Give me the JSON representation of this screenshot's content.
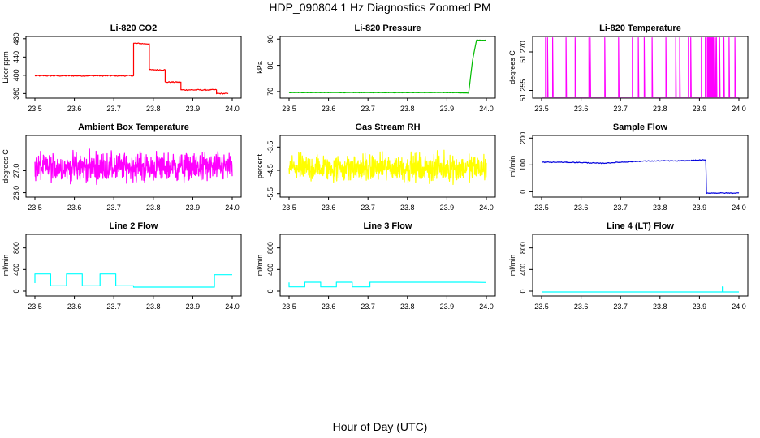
{
  "page": {
    "title": "HDP_090804  1 Hz Diagnostics Zoomed PM",
    "footer": "Hour of Day (UTC)"
  },
  "chart_data": [
    {
      "type": "line",
      "title": "Li-820 CO2",
      "ylabel": "Licor ppm",
      "color": "#ff0000",
      "xlim": [
        23.5,
        24.0
      ],
      "ylim": [
        350,
        485
      ],
      "xticks": [
        "23.5",
        "23.6",
        "23.7",
        "23.8",
        "23.9",
        "24.0"
      ],
      "yticks": [
        360,
        400,
        440,
        480
      ],
      "noise": 1.2,
      "series": [
        {
          "name": "CO2",
          "x": [
            23.5,
            23.75,
            23.75,
            23.79,
            23.79,
            23.83,
            23.83,
            23.87,
            23.87,
            23.96,
            23.96,
            23.99
          ],
          "y": [
            399,
            399,
            470,
            469,
            412,
            412,
            385,
            385,
            368,
            368,
            360,
            360
          ]
        }
      ]
    },
    {
      "type": "line",
      "title": "Li-820 Pressure",
      "ylabel": "kPa",
      "color": "#00bb00",
      "xlim": [
        23.5,
        24.0
      ],
      "ylim": [
        67.5,
        91
      ],
      "xticks": [
        "23.5",
        "23.6",
        "23.7",
        "23.8",
        "23.9",
        "24.0"
      ],
      "yticks": [
        70,
        80,
        90
      ],
      "noise": 0.08,
      "series": [
        {
          "name": "Pressure",
          "x": [
            23.5,
            23.92,
            23.955,
            23.965,
            23.975,
            24.0
          ],
          "y": [
            69.6,
            69.6,
            69.4,
            82.0,
            89.6,
            89.6
          ]
        }
      ]
    },
    {
      "type": "line",
      "title": "Li-820 Temperature",
      "ylabel": "degrees C",
      "color": "#ff00ff",
      "xlim": [
        23.5,
        24.0
      ],
      "ylim": [
        51.252,
        51.276
      ],
      "xticks": [
        "23.5",
        "23.6",
        "23.7",
        "23.8",
        "23.9",
        "24.0"
      ],
      "yticks": [
        "51.255",
        "51.270"
      ],
      "yticks_v": [
        51.255,
        51.27
      ],
      "baseline": 51.2524,
      "spike": 51.2755,
      "spikes": [
        23.51,
        23.515,
        23.528,
        23.562,
        23.585,
        23.62,
        23.623,
        23.66,
        23.695,
        23.73,
        23.745,
        23.76,
        23.78,
        23.815,
        23.84,
        23.85,
        23.872,
        23.878,
        23.905,
        23.915,
        23.92,
        23.922,
        23.924,
        23.926,
        23.928,
        23.93,
        23.932,
        23.934,
        23.936,
        23.94,
        23.943,
        23.951,
        23.962,
        23.975,
        23.99
      ]
    },
    {
      "type": "line",
      "title": "Ambient Box Temperature",
      "ylabel": "degrees C",
      "color": "#ff00ff",
      "xlim": [
        23.5,
        24.0
      ],
      "ylim": [
        25.8,
        28.6
      ],
      "xticks": [
        "23.5",
        "23.6",
        "23.7",
        "23.8",
        "23.9",
        "24.0"
      ],
      "yticks": [
        "26.0",
        "27.0"
      ],
      "yticks_v": [
        26.0,
        27.0
      ],
      "mean": 27.15,
      "amp": 0.95
    },
    {
      "type": "line",
      "title": "Gas Stream RH",
      "ylabel": "percent",
      "color": "#ffff00",
      "xlim": [
        23.5,
        24.0
      ],
      "ylim": [
        -5.65,
        -3.0
      ],
      "xticks": [
        "23.5",
        "23.6",
        "23.7",
        "23.8",
        "23.9",
        "24.0"
      ],
      "yticks": [
        "-5.5",
        "-4.5",
        "-3.5"
      ],
      "yticks_v": [
        -5.5,
        -4.5,
        -3.5
      ],
      "mean": -4.4,
      "amp": 0.85
    },
    {
      "type": "line",
      "title": "Sample Flow",
      "ylabel": "ml/min",
      "color": "#0000dd",
      "xlim": [
        23.5,
        24.0
      ],
      "ylim": [
        -20,
        210
      ],
      "xticks": [
        "23.5",
        "23.6",
        "23.7",
        "23.8",
        "23.9",
        "24.0"
      ],
      "yticks": [
        0,
        100,
        200
      ],
      "noise": 1.5,
      "series": [
        {
          "name": "Sample Flow",
          "x": [
            23.5,
            23.55,
            23.6,
            23.65,
            23.7,
            23.75,
            23.8,
            23.85,
            23.9,
            23.916,
            23.918,
            24.0
          ],
          "y": [
            110,
            110,
            109,
            106,
            110,
            114,
            115,
            115,
            118,
            118,
            -5,
            -5
          ]
        }
      ]
    },
    {
      "type": "line",
      "title": "Line 2 Flow",
      "ylabel": "ml/min",
      "color": "#00ffff",
      "xlim": [
        23.5,
        24.0
      ],
      "ylim": [
        -90,
        1050
      ],
      "xticks": [
        "23.5",
        "23.6",
        "23.7",
        "23.8",
        "23.9",
        "24.0"
      ],
      "yticks": [
        0,
        400,
        800
      ],
      "series": [
        {
          "name": "Line 2",
          "x": [
            23.5,
            23.5,
            23.54,
            23.54,
            23.58,
            23.58,
            23.62,
            23.62,
            23.665,
            23.665,
            23.705,
            23.705,
            23.75,
            23.75,
            23.955,
            23.955,
            24.0
          ],
          "y": [
            150,
            320,
            320,
            100,
            100,
            320,
            320,
            100,
            100,
            320,
            320,
            100,
            100,
            75,
            75,
            305,
            305
          ]
        }
      ]
    },
    {
      "type": "line",
      "title": "Line 3 Flow",
      "ylabel": "ml/min",
      "color": "#00ffff",
      "xlim": [
        23.5,
        24.0
      ],
      "ylim": [
        -90,
        1050
      ],
      "xticks": [
        "23.5",
        "23.6",
        "23.7",
        "23.8",
        "23.9",
        "24.0"
      ],
      "yticks": [
        0,
        400,
        800
      ],
      "series": [
        {
          "name": "Line 3",
          "x": [
            23.5,
            23.5,
            23.54,
            23.54,
            23.58,
            23.58,
            23.62,
            23.62,
            23.66,
            23.66,
            23.705,
            23.705,
            23.96,
            24.0
          ],
          "y": [
            160,
            80,
            80,
            165,
            165,
            80,
            80,
            165,
            165,
            80,
            80,
            165,
            165,
            160
          ]
        }
      ]
    },
    {
      "type": "line",
      "title": "Line 4 (LT) Flow",
      "ylabel": "ml/min",
      "color": "#00ffff",
      "xlim": [
        23.5,
        24.0
      ],
      "ylim": [
        -90,
        1050
      ],
      "xticks": [
        "23.5",
        "23.6",
        "23.7",
        "23.8",
        "23.9",
        "24.0"
      ],
      "yticks": [
        0,
        400,
        800
      ],
      "series": [
        {
          "name": "Line 4",
          "x": [
            23.5,
            23.958,
            23.958,
            23.96,
            23.96,
            24.0
          ],
          "y": [
            -15,
            -15,
            80,
            80,
            -15,
            -15
          ]
        }
      ]
    }
  ]
}
